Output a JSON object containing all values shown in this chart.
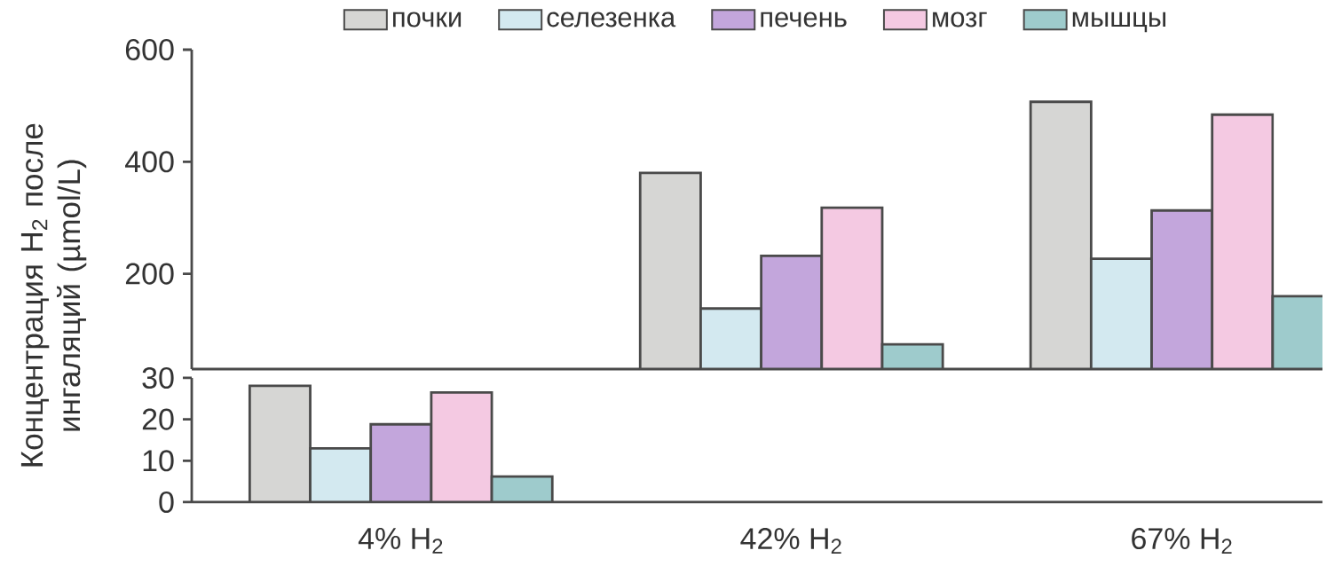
{
  "chart_data": [
    {
      "type": "bar",
      "ylabel": "Концентрация H$_{2}$ после ингаляций (µmol/L)",
      "categories": [
        "4% H$_{2}$",
        "42% H$_{2}$",
        "67% H$_{2}$"
      ],
      "series": [
        {
          "name": "почки",
          "color": "#d6d6d4",
          "values": [
            null,
            380,
            507
          ]
        },
        {
          "name": "селезенка",
          "color": "#d3e9f0",
          "values": [
            null,
            138,
            227
          ]
        },
        {
          "name": "печень",
          "color": "#c3a6dc",
          "values": [
            null,
            232,
            313
          ]
        },
        {
          "name": "мозг",
          "color": "#f4c9e2",
          "values": [
            null,
            318,
            484
          ]
        },
        {
          "name": "мышцы",
          "color": "#9ecbcc",
          "values": [
            null,
            74,
            160
          ]
        }
      ],
      "ylim": [
        30,
        600
      ],
      "yticks": [
        200,
        400,
        600
      ],
      "legend": "top"
    },
    {
      "type": "bar",
      "categories": [
        null
      ],
      "series": [
        {
          "color": "#d6d6d4",
          "values": [
            28.1
          ]
        },
        {
          "color": "#d3e9f0",
          "values": [
            13
          ]
        },
        {
          "color": "#c3a6dc",
          "values": [
            18.8
          ]
        },
        {
          "color": "#f4c9e2",
          "values": [
            26.5
          ]
        },
        {
          "color": "#9ecbcc",
          "values": [
            6.2
          ]
        }
      ],
      "ylim": [
        0,
        30
      ],
      "yticks": [
        0,
        10,
        20,
        30
      ],
      "tick_labels": "y"
    }
  ]
}
